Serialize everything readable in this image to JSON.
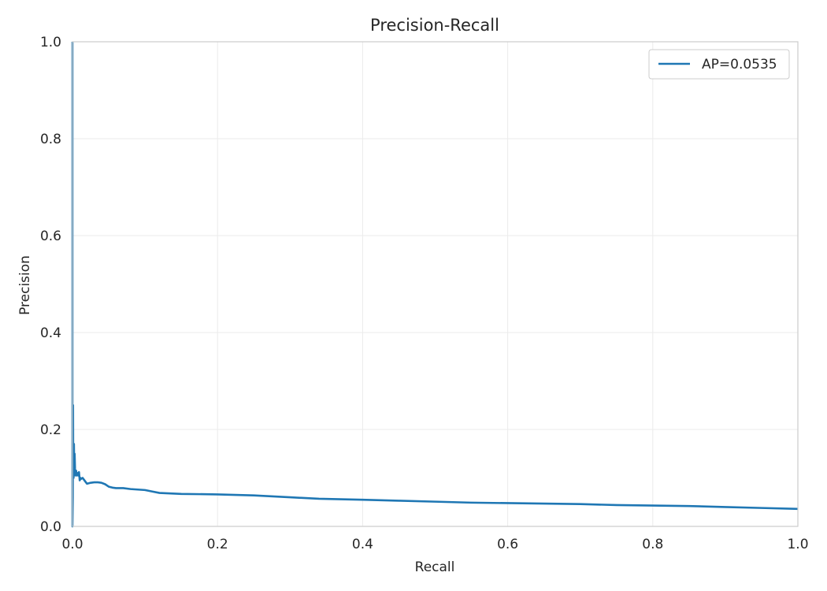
{
  "chart_data": {
    "type": "line",
    "title": "Precision-Recall",
    "xlabel": "Recall",
    "ylabel": "Precision",
    "xlim": [
      0,
      1
    ],
    "ylim": [
      0,
      1
    ],
    "xticks": [
      "0.0",
      "0.2",
      "0.4",
      "0.6",
      "0.8",
      "1.0"
    ],
    "yticks": [
      "0.0",
      "0.2",
      "0.4",
      "0.6",
      "0.8",
      "1.0"
    ],
    "grid": true,
    "legend_position": "top-right",
    "series": [
      {
        "name": "AP=0.0535",
        "color": "#1f77b4",
        "x": [
          0.0,
          0.0,
          0.0005,
          0.0008,
          0.001,
          0.0015,
          0.002,
          0.0025,
          0.003,
          0.0035,
          0.004,
          0.005,
          0.006,
          0.007,
          0.008,
          0.009,
          0.01,
          0.011,
          0.012,
          0.014,
          0.016,
          0.018,
          0.02,
          0.025,
          0.03,
          0.035,
          0.04,
          0.045,
          0.05,
          0.055,
          0.06,
          0.07,
          0.08,
          0.09,
          0.1,
          0.11,
          0.12,
          0.15,
          0.2,
          0.25,
          0.3,
          0.34,
          0.4,
          0.45,
          0.5,
          0.55,
          0.6,
          0.65,
          0.7,
          0.75,
          0.8,
          0.85,
          0.9,
          0.95,
          1.0
        ],
        "y": [
          1.0,
          0.0,
          0.06,
          0.25,
          0.14,
          0.1,
          0.17,
          0.12,
          0.15,
          0.12,
          0.105,
          0.115,
          0.105,
          0.11,
          0.105,
          0.112,
          0.095,
          0.1,
          0.098,
          0.1,
          0.096,
          0.092,
          0.088,
          0.09,
          0.091,
          0.091,
          0.09,
          0.087,
          0.082,
          0.08,
          0.079,
          0.079,
          0.077,
          0.076,
          0.075,
          0.072,
          0.069,
          0.067,
          0.066,
          0.064,
          0.06,
          0.057,
          0.055,
          0.053,
          0.051,
          0.049,
          0.048,
          0.047,
          0.046,
          0.044,
          0.043,
          0.042,
          0.04,
          0.038,
          0.036
        ]
      }
    ]
  }
}
